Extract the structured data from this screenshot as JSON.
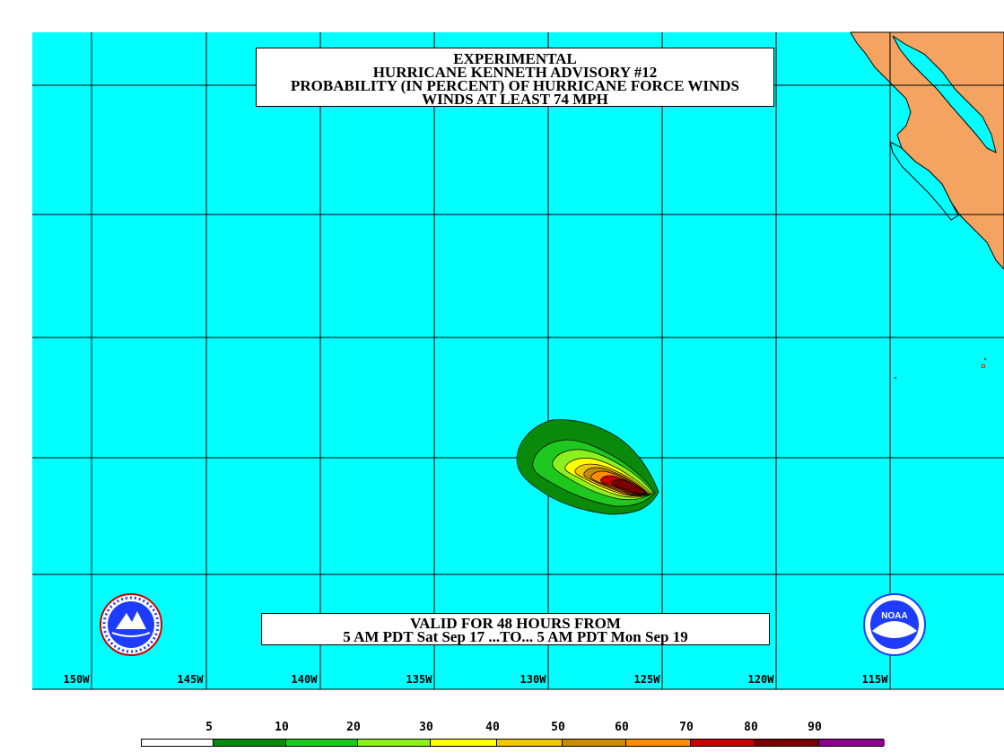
{
  "header": {
    "line1": "EXPERIMENTAL",
    "line2": "HURRICANE KENNETH ADVISORY #12",
    "line3": "PROBABILITY (IN PERCENT) OF HURRICANE FORCE WINDS",
    "line4": "WINDS AT LEAST 74 MPH"
  },
  "valid": {
    "line1": "VALID FOR 48 HOURS FROM",
    "line2": "5 AM PDT Sat Sep 17 ...TO... 5 AM PDT Mon Sep 19"
  },
  "longitudes": [
    "150W",
    "145W",
    "140W",
    "135W",
    "130W",
    "125W",
    "120W",
    "115W"
  ],
  "legend": {
    "values": [
      "5",
      "10",
      "20",
      "30",
      "40",
      "50",
      "60",
      "70",
      "80",
      "90"
    ],
    "colors": [
      "#ffffff",
      "#0a8a0a",
      "#1ec81e",
      "#8cf01e",
      "#ffff00",
      "#f0c800",
      "#c88c00",
      "#ff8c00",
      "#c80000",
      "#780000",
      "#8c008c"
    ]
  },
  "colors": {
    "ocean": "#00ffff",
    "land": "#f4a460",
    "grid": "#000000"
  },
  "logos": {
    "left": "nws-logo-icon",
    "right": "noaa-logo-icon",
    "right_text": "NOAA"
  }
}
